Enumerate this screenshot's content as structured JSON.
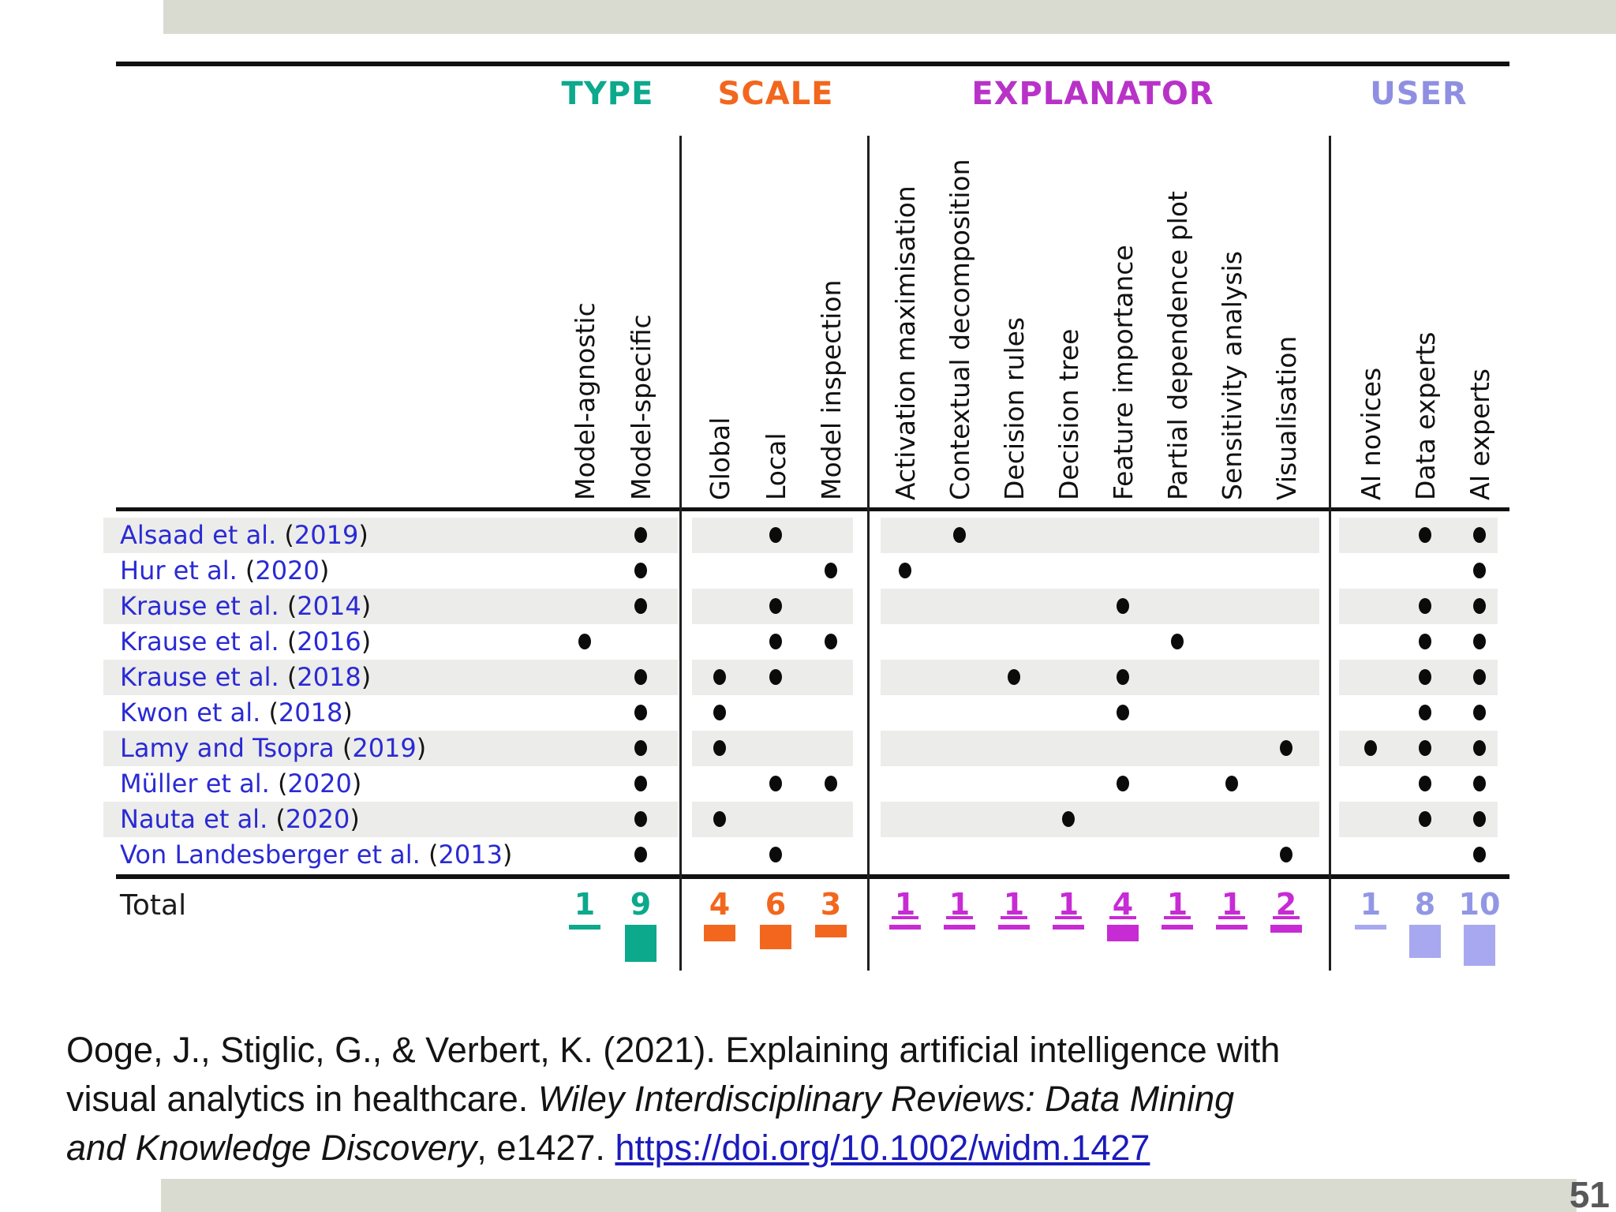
{
  "slide": {
    "page_number": "51"
  },
  "table": {
    "group_headers": [
      {
        "label": "TYPE",
        "color": "#0ca98c",
        "total_color": "#0ca98c",
        "bar_color": "#0ca98c"
      },
      {
        "label": "SCALE",
        "color": "#f2671d",
        "total_color": "#f2671d",
        "bar_color": "#f2671d"
      },
      {
        "label": "EXPLANATOR",
        "color": "#b832c8",
        "total_color": "#c72bd4",
        "bar_color": "#c72bd4"
      },
      {
        "label": "USER",
        "color": "#8f8fe2",
        "total_color": "#9197e4",
        "bar_color": "#a8a8f0"
      }
    ],
    "columns": [
      {
        "label": "Model-agnostic",
        "group": 0
      },
      {
        "label": "Model-specific",
        "group": 0
      },
      {
        "label": "Global",
        "group": 1
      },
      {
        "label": "Local",
        "group": 1
      },
      {
        "label": "Model inspection",
        "group": 1
      },
      {
        "label": "Activation maximisation",
        "group": 2
      },
      {
        "label": "Contextual decomposition",
        "group": 2
      },
      {
        "label": "Decision rules",
        "group": 2
      },
      {
        "label": "Decision tree",
        "group": 2
      },
      {
        "label": "Feature importance",
        "group": 2
      },
      {
        "label": "Partial dependence plot",
        "group": 2
      },
      {
        "label": "Sensitivity analysis",
        "group": 2
      },
      {
        "label": "Visualisation",
        "group": 2
      },
      {
        "label": "AI novices",
        "group": 3
      },
      {
        "label": "Data experts",
        "group": 3
      },
      {
        "label": "AI experts",
        "group": 3
      }
    ],
    "rows": [
      {
        "citation": "Alsaad et al.",
        "year": "2019",
        "marks": [
          0,
          1,
          0,
          1,
          0,
          0,
          1,
          0,
          0,
          0,
          0,
          0,
          0,
          0,
          1,
          1
        ]
      },
      {
        "citation": "Hur et al.",
        "year": "2020",
        "marks": [
          0,
          1,
          0,
          0,
          1,
          1,
          0,
          0,
          0,
          0,
          0,
          0,
          0,
          0,
          0,
          1
        ]
      },
      {
        "citation": "Krause et al.",
        "year": "2014",
        "marks": [
          0,
          1,
          0,
          1,
          0,
          0,
          0,
          0,
          0,
          1,
          0,
          0,
          0,
          0,
          1,
          1
        ]
      },
      {
        "citation": "Krause et al.",
        "year": "2016",
        "marks": [
          1,
          0,
          0,
          1,
          1,
          0,
          0,
          0,
          0,
          0,
          1,
          0,
          0,
          0,
          1,
          1
        ]
      },
      {
        "citation": "Krause et al.",
        "year": "2018",
        "marks": [
          0,
          1,
          1,
          1,
          0,
          0,
          0,
          1,
          0,
          1,
          0,
          0,
          0,
          0,
          1,
          1
        ]
      },
      {
        "citation": "Kwon et al.",
        "year": "2018",
        "marks": [
          0,
          1,
          1,
          0,
          0,
          0,
          0,
          0,
          0,
          1,
          0,
          0,
          0,
          0,
          1,
          1
        ]
      },
      {
        "citation": "Lamy and Tsopra",
        "year": "2019",
        "marks": [
          0,
          1,
          1,
          0,
          0,
          0,
          0,
          0,
          0,
          0,
          0,
          0,
          1,
          1,
          1,
          1
        ]
      },
      {
        "citation": "Müller et al.",
        "year": "2020",
        "marks": [
          0,
          1,
          0,
          1,
          1,
          0,
          0,
          0,
          0,
          1,
          0,
          1,
          0,
          0,
          1,
          1
        ]
      },
      {
        "citation": "Nauta et al.",
        "year": "2020",
        "marks": [
          0,
          1,
          1,
          0,
          0,
          0,
          0,
          0,
          1,
          0,
          0,
          0,
          0,
          0,
          1,
          1
        ]
      },
      {
        "citation": "Von Landesberger et al.",
        "year": "2013",
        "marks": [
          0,
          1,
          0,
          1,
          0,
          0,
          0,
          0,
          0,
          0,
          0,
          0,
          1,
          0,
          0,
          1
        ]
      }
    ],
    "total_label": "Total",
    "totals": [
      1,
      9,
      4,
      6,
      3,
      1,
      1,
      1,
      1,
      4,
      1,
      1,
      2,
      1,
      8,
      10
    ]
  },
  "citation": {
    "line1": "Ooge, J., Stiglic, G., & Verbert, K. (2021). Explaining artificial intelligence with",
    "line2_normal": "visual analytics in healthcare. ",
    "line2_italic": "Wiley Interdisciplinary Reviews: Data Mining",
    "line3_italic": "and Knowledge Discovery",
    "line3_normal": ", e1427. ",
    "link": "https://doi.org/10.1002/widm.1427"
  }
}
